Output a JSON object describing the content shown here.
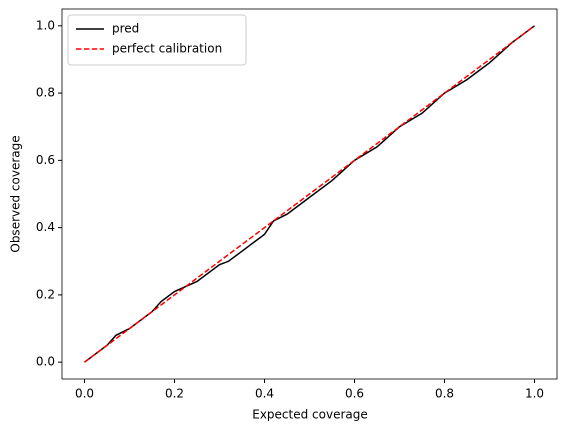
{
  "chart_data": {
    "type": "line",
    "x_label": "Expected coverage",
    "y_label": "Observed coverage",
    "x": [
      0,
      0.02,
      0.05,
      0.07,
      0.1,
      0.12,
      0.15,
      0.17,
      0.2,
      0.25,
      0.3,
      0.32,
      0.35,
      0.4,
      0.42,
      0.45,
      0.5,
      0.55,
      0.6,
      0.65,
      0.7,
      0.75,
      0.8,
      0.85,
      0.87,
      0.9,
      0.95,
      0.98,
      1
    ],
    "series": [
      {
        "name": "pred",
        "color": "#000000",
        "dash": false,
        "values": [
          0,
          0.02,
          0.05,
          0.08,
          0.1,
          0.12,
          0.15,
          0.18,
          0.21,
          0.24,
          0.29,
          0.3,
          0.33,
          0.38,
          0.42,
          0.44,
          0.49,
          0.54,
          0.6,
          0.64,
          0.7,
          0.74,
          0.8,
          0.84,
          0.86,
          0.89,
          0.95,
          0.98,
          1
        ]
      },
      {
        "name": "perfect calibration",
        "color": "#ff0000",
        "dash": true,
        "values": [
          0,
          0.02,
          0.05,
          0.07,
          0.1,
          0.12,
          0.15,
          0.17,
          0.2,
          0.25,
          0.3,
          0.32,
          0.35,
          0.4,
          0.42,
          0.45,
          0.5,
          0.55,
          0.6,
          0.65,
          0.7,
          0.75,
          0.8,
          0.85,
          0.87,
          0.9,
          0.95,
          0.98,
          1
        ]
      }
    ],
    "xlim": [
      -0.05,
      1.05
    ],
    "ylim": [
      -0.05,
      1.05
    ],
    "xticks": [
      {
        "value": 0,
        "label": "0.0"
      },
      {
        "value": 0.2,
        "label": "0.2"
      },
      {
        "value": 0.4,
        "label": "0.4"
      },
      {
        "value": 0.6,
        "label": "0.6"
      },
      {
        "value": 0.8,
        "label": "0.8"
      },
      {
        "value": 1,
        "label": "1.0"
      }
    ],
    "yticks": [
      {
        "value": 0,
        "label": "0.0"
      },
      {
        "value": 0.2,
        "label": "0.2"
      },
      {
        "value": 0.4,
        "label": "0.4"
      },
      {
        "value": 0.6,
        "label": "0.6"
      },
      {
        "value": 0.8,
        "label": "0.8"
      },
      {
        "value": 1,
        "label": "1.0"
      }
    ],
    "legend": "upper left",
    "grid": false
  }
}
